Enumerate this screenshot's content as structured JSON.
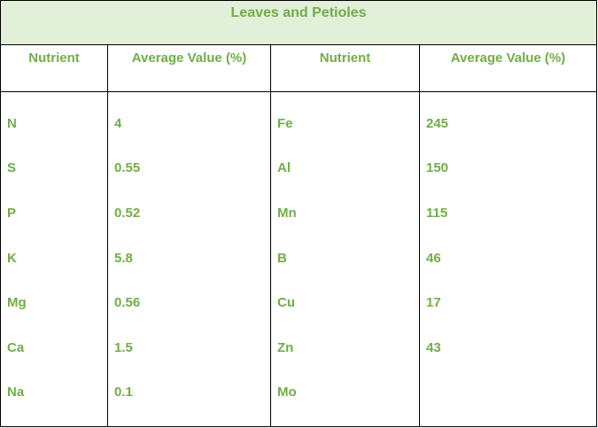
{
  "table": {
    "title": "Leaves and Petioles",
    "headers": [
      "Nutrient",
      "Average Value (%)",
      "Nutrient",
      "Average Value (%)"
    ],
    "rows": [
      [
        "N",
        "4",
        "Fe",
        "245"
      ],
      [
        "S",
        "0.55",
        "Al",
        "150"
      ],
      [
        "P",
        "0.52",
        "Mn",
        "115"
      ],
      [
        "K",
        "5.8",
        "B",
        "46"
      ],
      [
        "Mg",
        "0.56",
        "Cu",
        "17"
      ],
      [
        "Ca",
        "1.5",
        "Zn",
        "43"
      ],
      [
        "Na",
        "0.1",
        "Mo",
        ""
      ]
    ]
  }
}
